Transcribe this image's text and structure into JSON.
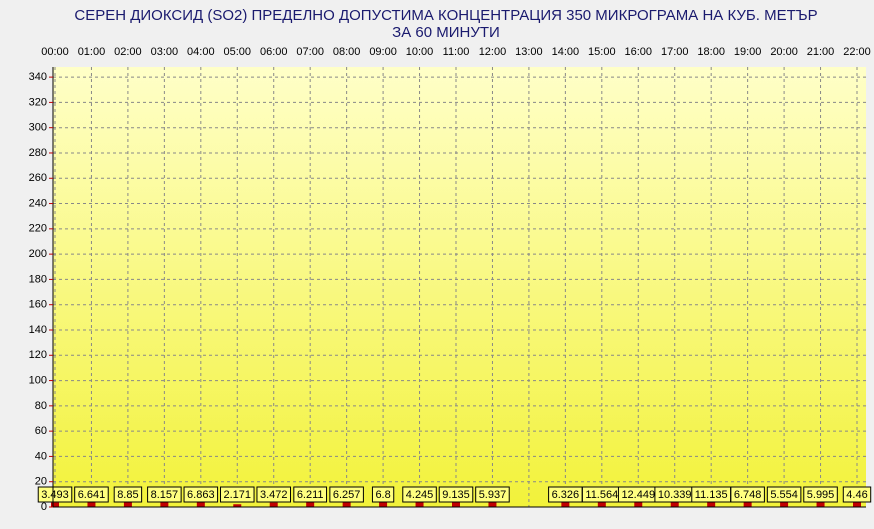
{
  "chart_data": {
    "type": "bar",
    "title": "СЕРЕН ДИОКСИД  (SO2)  ПРЕДЕЛНО ДОПУСТИМА КОНЦЕНТРАЦИЯ 350 МИКРОГРАМА  НА КУБ. МЕТЪР",
    "subtitle": "ЗА 60 МИНУТИ",
    "categories": [
      "00:00",
      "01:00",
      "02:00",
      "03:00",
      "04:00",
      "05:00",
      "06:00",
      "07:00",
      "08:00",
      "09:00",
      "10:00",
      "11:00",
      "12:00",
      "13:00",
      "14:00",
      "15:00",
      "16:00",
      "17:00",
      "18:00",
      "19:00",
      "20:00",
      "21:00",
      "22:00"
    ],
    "values": [
      3.493,
      6.641,
      8.85,
      8.157,
      6.863,
      2.171,
      3.472,
      6.211,
      6.257,
      6.8,
      4.245,
      9.135,
      5.937,
      null,
      6.326,
      11.564,
      12.449,
      10.339,
      11.135,
      6.748,
      5.554,
      5.995,
      4.46
    ],
    "color": "#c00000",
    "ylim": [
      0,
      348
    ],
    "yticks": [
      0,
      20,
      40,
      60,
      80,
      100,
      120,
      140,
      160,
      180,
      200,
      220,
      240,
      260,
      280,
      300,
      320,
      340
    ],
    "grid": true
  }
}
